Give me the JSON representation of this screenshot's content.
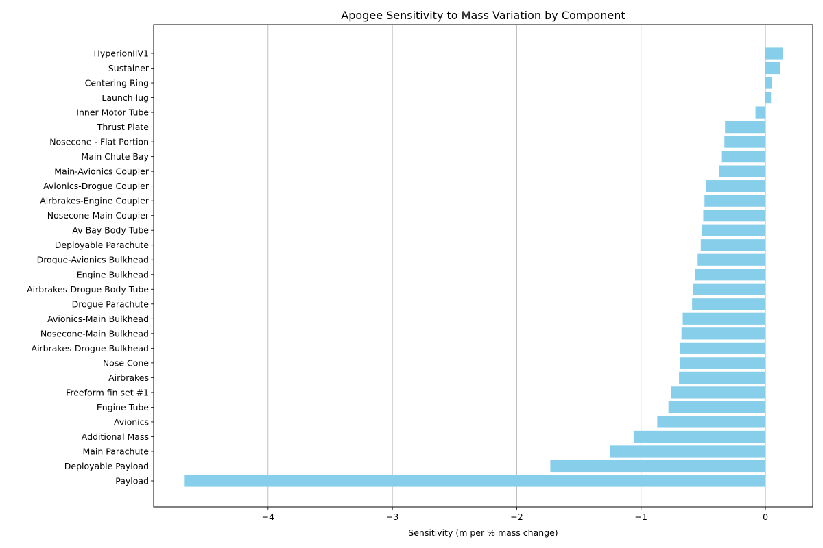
{
  "chart_data": {
    "type": "bar",
    "orientation": "horizontal",
    "title": "Apogee Sensitivity to Mass Variation by Component",
    "xlabel": "Sensitivity (m per % mass change)",
    "ylabel": "",
    "xlim": [
      -4.92,
      0.38
    ],
    "xticks": [
      -4,
      -3,
      -2,
      -1,
      0
    ],
    "xtick_labels": [
      "−4",
      "−3",
      "−2",
      "−1",
      "0"
    ],
    "grid": "vertical",
    "bar_color": "#87CEEB",
    "categories": [
      "HyperionIIV1",
      "Sustainer",
      "Centering Ring",
      "Launch lug",
      "Inner Motor Tube",
      "Thrust Plate",
      "Nosecone - Flat Portion",
      "Main Chute Bay",
      "Main-Avionics Coupler",
      "Avionics-Drogue Coupler",
      "Airbrakes-Engine Coupler",
      "Nosecone-Main Coupler",
      "Av Bay Body Tube",
      "Deployable Parachute",
      "Drogue-Avionics Bulkhead",
      "Engine Bulkhead",
      "Airbrakes-Drogue Body Tube",
      "Drogue Parachute",
      "Avionics-Main Bulkhead",
      "Nosecone-Main Bulkhead",
      "Airbrakes-Drogue Bulkhead",
      "Nose Cone",
      "Airbrakes",
      "Freeform fin set #1",
      "Engine Tube",
      "Avionics",
      "Additional Mass",
      "Main Parachute",
      "Deployable Payload",
      "Payload"
    ],
    "values": [
      0.14,
      0.12,
      0.05,
      0.045,
      -0.08,
      -0.325,
      -0.33,
      -0.35,
      -0.37,
      -0.48,
      -0.49,
      -0.5,
      -0.51,
      -0.52,
      -0.545,
      -0.565,
      -0.58,
      -0.59,
      -0.665,
      -0.675,
      -0.685,
      -0.69,
      -0.695,
      -0.76,
      -0.78,
      -0.87,
      -1.06,
      -1.25,
      -1.73,
      -4.67
    ]
  }
}
